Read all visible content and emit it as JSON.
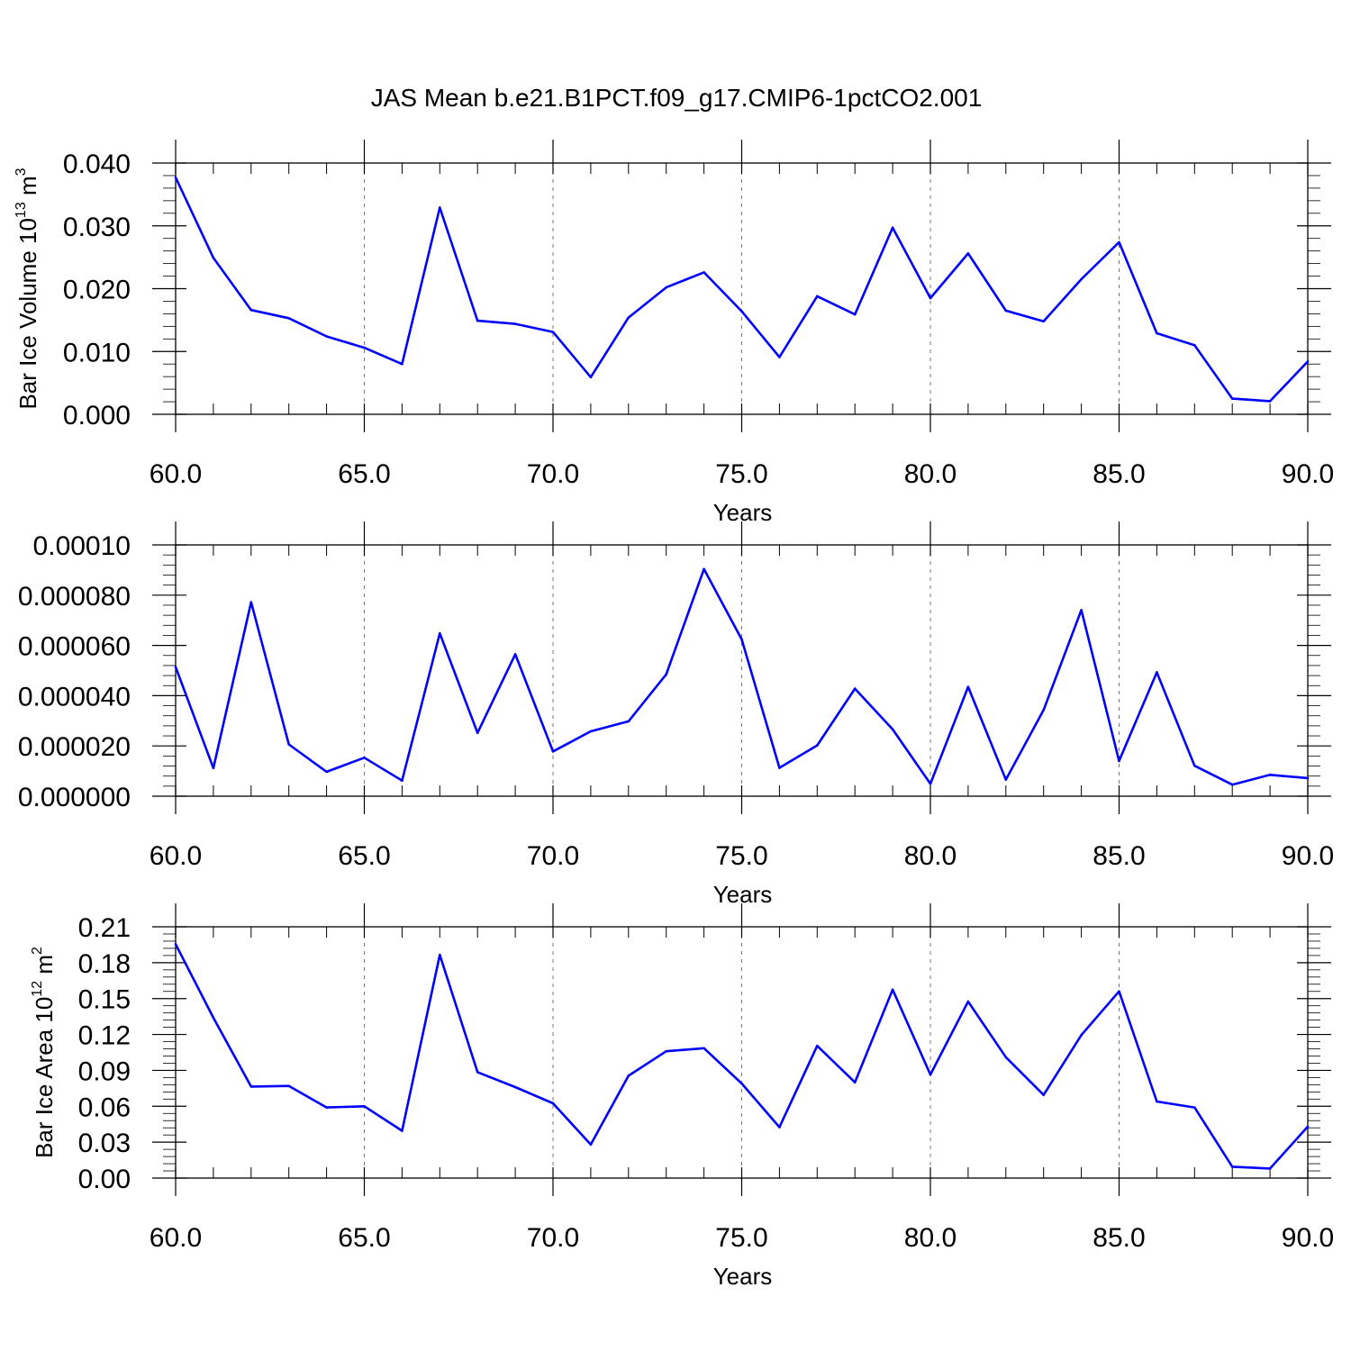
{
  "title": "JAS Mean b.e21.B1PCT.f09_g17.CMIP6-1pctCO2.001",
  "line_color": "#0000ff",
  "chart_data": [
    {
      "type": "line",
      "xlabel": "Years",
      "ylabel": "Bar Ice Volume 10",
      "ylabel_unit": "m",
      "ylabel_exp1": "13",
      "ylabel_exp2": "3",
      "xlim": [
        60,
        90
      ],
      "ylim": [
        0,
        0.04
      ],
      "x_ticks": [
        "60.0",
        "65.0",
        "70.0",
        "75.0",
        "80.0",
        "85.0",
        "90.0"
      ],
      "y_ticks": [
        "0.000",
        "0.010",
        "0.020",
        "0.030",
        "0.040"
      ],
      "y_tick_values": [
        0,
        0.01,
        0.02,
        0.03,
        0.04
      ],
      "grid": "vertical dashed at major x ticks",
      "x": [
        60,
        61,
        62,
        63,
        64,
        65,
        66,
        67,
        68,
        69,
        70,
        71,
        72,
        73,
        74,
        75,
        76,
        77,
        78,
        79,
        80,
        81,
        82,
        83,
        84,
        85,
        86,
        87,
        88,
        89,
        90
      ],
      "series": [
        {
          "values": [
            0.0377,
            0.0249,
            0.0166,
            0.0153,
            0.0124,
            0.0106,
            0.008,
            0.0329,
            0.0149,
            0.0144,
            0.0131,
            0.0059,
            0.0154,
            0.0202,
            0.0226,
            0.0164,
            0.0091,
            0.0188,
            0.0159,
            0.0297,
            0.0185,
            0.0256,
            0.0165,
            0.0148,
            0.0215,
            0.0274,
            0.0129,
            0.011,
            0.0025,
            0.0021,
            0.0084
          ]
        }
      ]
    },
    {
      "type": "line",
      "xlabel": "Years",
      "ylabel": "",
      "xlim": [
        60,
        90
      ],
      "ylim": [
        0,
        0.0001
      ],
      "x_ticks": [
        "60.0",
        "65.0",
        "70.0",
        "75.0",
        "80.0",
        "85.0",
        "90.0"
      ],
      "y_ticks": [
        "0.000000",
        "0.000020",
        "0.000040",
        "0.000060",
        "0.000080",
        "0.00010"
      ],
      "y_tick_values": [
        0,
        2e-05,
        4e-05,
        6e-05,
        8e-05,
        0.0001
      ],
      "grid": "vertical dashed at major x ticks",
      "x": [
        60,
        61,
        62,
        63,
        64,
        65,
        66,
        67,
        68,
        69,
        70,
        71,
        72,
        73,
        74,
        75,
        76,
        77,
        78,
        79,
        80,
        81,
        82,
        83,
        84,
        85,
        86,
        87,
        88,
        89,
        90
      ],
      "series": [
        {
          "values": [
            5.14e-05,
            1.12e-05,
            7.72e-05,
            2.06e-05,
            9.7e-06,
            1.53e-05,
            6.2e-06,
            6.48e-05,
            2.52e-05,
            5.65e-05,
            1.78e-05,
            2.58e-05,
            2.98e-05,
            4.85e-05,
            9.04e-05,
            6.24e-05,
            1.13e-05,
            2.02e-05,
            4.28e-05,
            2.66e-05,
            4.9e-06,
            4.35e-05,
            6.6e-06,
            3.43e-05,
            7.41e-05,
            1.4e-05,
            4.93e-05,
            1.21e-05,
            4.6e-06,
            8.5e-06,
            7.2e-06
          ]
        }
      ]
    },
    {
      "type": "line",
      "xlabel": "Years",
      "ylabel": "Bar Ice Area 10",
      "ylabel_unit": "m",
      "ylabel_exp1": "12",
      "ylabel_exp2": "2",
      "xlim": [
        60,
        90
      ],
      "ylim": [
        0,
        0.21
      ],
      "x_ticks": [
        "60.0",
        "65.0",
        "70.0",
        "75.0",
        "80.0",
        "85.0",
        "90.0"
      ],
      "y_ticks": [
        "0.00",
        "0.03",
        "0.06",
        "0.09",
        "0.12",
        "0.15",
        "0.18",
        "0.21"
      ],
      "y_tick_values": [
        0,
        0.03,
        0.06,
        0.09,
        0.12,
        0.15,
        0.18,
        0.21
      ],
      "grid": "vertical dashed at major x ticks",
      "x": [
        60,
        61,
        62,
        63,
        64,
        65,
        66,
        67,
        68,
        69,
        70,
        71,
        72,
        73,
        74,
        75,
        76,
        77,
        78,
        79,
        80,
        81,
        82,
        83,
        84,
        85,
        86,
        87,
        88,
        89,
        90
      ],
      "series": [
        {
          "values": [
            0.1955,
            0.134,
            0.0765,
            0.077,
            0.059,
            0.06,
            0.0395,
            0.1865,
            0.0885,
            0.076,
            0.0625,
            0.028,
            0.0855,
            0.106,
            0.1085,
            0.079,
            0.0425,
            0.1105,
            0.08,
            0.1575,
            0.0865,
            0.1475,
            0.101,
            0.0695,
            0.1195,
            0.156,
            0.064,
            0.059,
            0.0095,
            0.008,
            0.043
          ]
        }
      ]
    }
  ]
}
